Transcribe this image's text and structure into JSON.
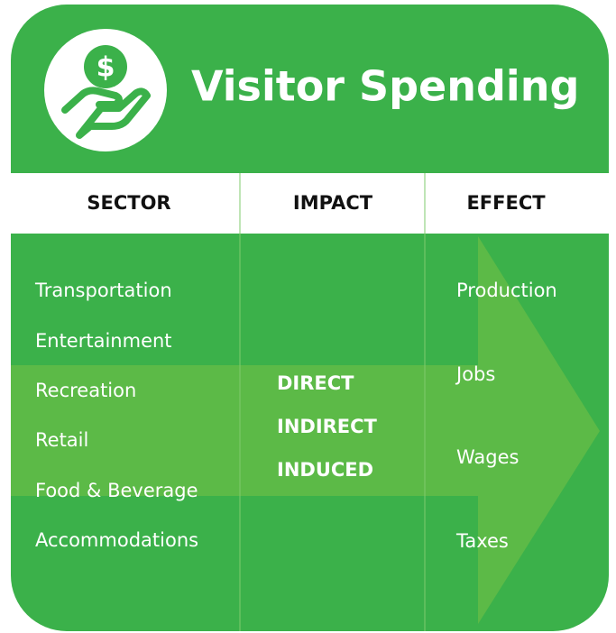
{
  "header": {
    "title": "Visitor Spending"
  },
  "columns": [
    "SECTOR",
    "IMPACT",
    "EFFECT"
  ],
  "sectors": [
    "Transportation",
    "Entertainment",
    "Recreation",
    "Retail",
    "Food & Beverage",
    "Accommodations"
  ],
  "impacts": [
    "DIRECT",
    "INDIRECT",
    "INDUCED"
  ],
  "effects": [
    "Production",
    "Jobs",
    "Wages",
    "Taxes"
  ]
}
